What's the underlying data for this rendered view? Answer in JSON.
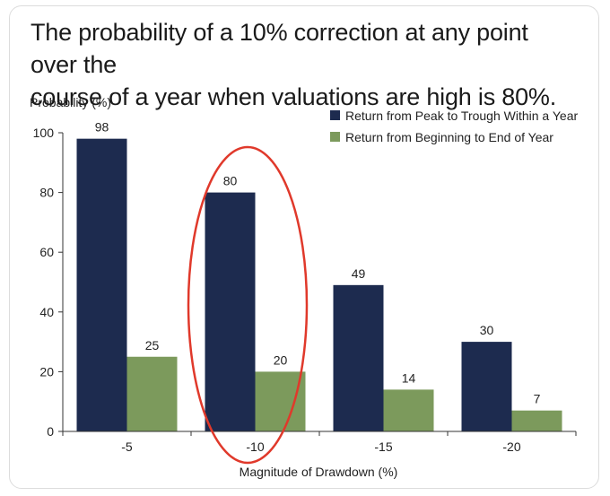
{
  "headline": {
    "line1": "The probability of a 10% correction at any point over the",
    "line2": "course of a year when valuations are high is 80%."
  },
  "chart_data": {
    "type": "bar",
    "title": "The probability of a 10% correction at any point over the course of a year when valuations are high is 80%.",
    "xlabel": "Magnitude of Drawdown (%)",
    "ylabel": "Probability (%)",
    "ylim": [
      0,
      100
    ],
    "yticks": [
      0,
      20,
      40,
      60,
      80,
      100
    ],
    "categories": [
      "-5",
      "-10",
      "-15",
      "-20"
    ],
    "series": [
      {
        "name": "Return from Peak to Trough Within a Year",
        "color": "#1d2b4f",
        "values": [
          98,
          80,
          49,
          30
        ]
      },
      {
        "name": "Return from Beginning to End of Year",
        "color": "#7c9a5c",
        "values": [
          25,
          20,
          14,
          7
        ]
      }
    ],
    "legend_position": "top-right",
    "annotation": {
      "type": "ellipse",
      "target_category": "-10",
      "color": "#e0392b"
    }
  }
}
